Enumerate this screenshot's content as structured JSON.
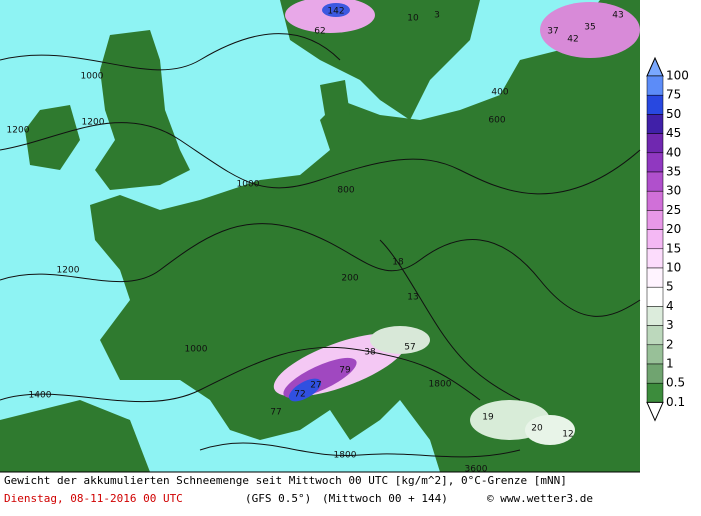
{
  "legend": {
    "labels": [
      "100",
      "75",
      "50",
      "45",
      "40",
      "35",
      "30",
      "25",
      "20",
      "15",
      "10",
      "5",
      "4",
      "3",
      "2",
      "1",
      "0.5",
      "0.1"
    ]
  },
  "footer": {
    "title": "Gewicht der akkumulierten Schneemenge seit Mittwoch 00 UTC [kg/m^2], 0°C-Grenze [mNN]",
    "date": "Dienstag, 08-11-2016  00 UTC",
    "model": "(GFS 0.5°)",
    "run": "(Mittwoch 00 + 144)",
    "copyright": "© www.wetter3.de"
  },
  "map_labels": [
    "142",
    "62",
    "10",
    "3",
    "1000",
    "1200",
    "1200",
    "1000",
    "800",
    "1200",
    "1000",
    "1400",
    "200",
    "18",
    "13",
    "57",
    "38",
    "79",
    "27",
    "72",
    "77",
    "19",
    "20",
    "12",
    "1800",
    "400",
    "600",
    "37",
    "42",
    "35",
    "43",
    "1800",
    "3600"
  ]
}
